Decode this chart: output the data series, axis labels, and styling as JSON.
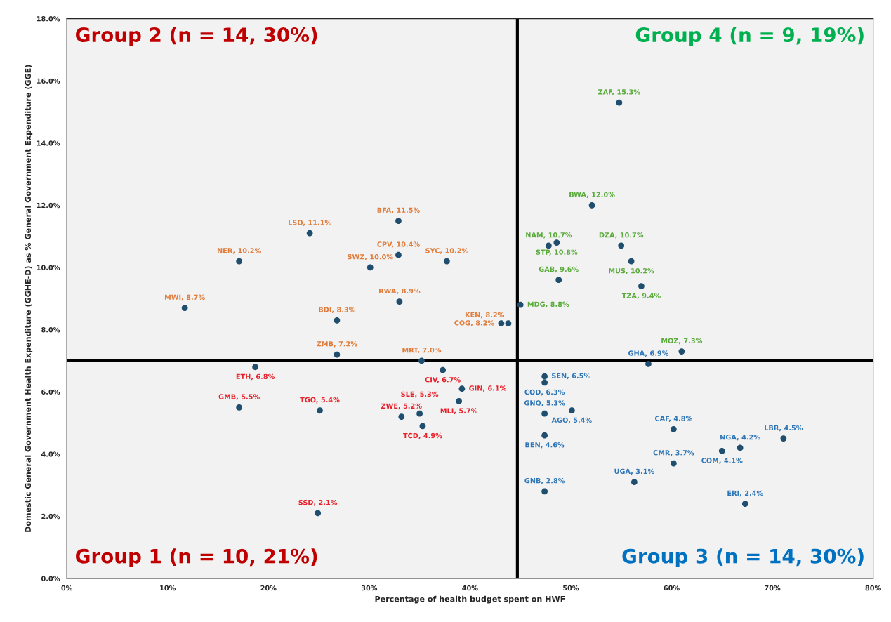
{
  "chart_data": {
    "type": "scatter",
    "xlabel": "Percentage of health budget spent on HWF",
    "ylabel": "Domestic General Government Health Expenditure (GGHE-D) as % General Government Expenditure (GGE)",
    "xlim": [
      0,
      80
    ],
    "ylim": [
      0,
      18
    ],
    "xticks": [
      {
        "value": 0,
        "label": "0%"
      },
      {
        "value": 10,
        "label": "10%"
      },
      {
        "value": 20,
        "label": "20%"
      },
      {
        "value": 30,
        "label": "30%"
      },
      {
        "value": 40,
        "label": "40%"
      },
      {
        "value": 50,
        "label": "50%"
      },
      {
        "value": 60,
        "label": "60%"
      },
      {
        "value": 70,
        "label": "70%"
      },
      {
        "value": 80,
        "label": "80%"
      }
    ],
    "yticks": [
      {
        "value": 0,
        "label": "0.0%"
      },
      {
        "value": 2,
        "label": "2.0%"
      },
      {
        "value": 4,
        "label": "4.0%"
      },
      {
        "value": 6,
        "label": "6.0%"
      },
      {
        "value": 8,
        "label": "8.0%"
      },
      {
        "value": 10,
        "label": "10.0%"
      },
      {
        "value": 12,
        "label": "12.0%"
      },
      {
        "value": 14,
        "label": "14.0%"
      },
      {
        "value": 16,
        "label": "16.0%"
      },
      {
        "value": 18,
        "label": "18.0%"
      }
    ],
    "marker": "circle",
    "grid": false,
    "series": [
      {
        "color": "#1f4e6e",
        "x": [
          11.7,
          17.1,
          24.1,
          32.9,
          32.9,
          30.1,
          37.7,
          33.0,
          26.8,
          43.8,
          43.1,
          26.8,
          35.2
        ],
        "values": [
          8.7,
          10.2,
          11.1,
          11.5,
          10.4,
          10.0,
          10.2,
          8.9,
          8.3,
          8.2,
          8.2,
          7.2,
          7.0
        ],
        "value_labels": [
          "MWI, 8.7%",
          "NER, 10.2%",
          "LSO, 11.1%",
          "BFA, 11.5%",
          "CPV, 10.4%",
          "SWZ, 10.0%",
          "SYC, 10.2%",
          "RWA, 8.9%",
          "BDI, 8.3%",
          "KEN, 8.2%",
          "COG, 8.2%",
          "ZMB, 7.2%",
          "MRT, 7.0%"
        ]
      },
      {
        "color": "#1f4e6e",
        "x": [
          18.7,
          17.1,
          25.1,
          24.9,
          37.3,
          39.2,
          38.9,
          33.2,
          35.0,
          35.3
        ],
        "values": [
          6.8,
          5.5,
          5.4,
          2.1,
          6.7,
          6.1,
          5.7,
          5.2,
          5.3,
          4.9
        ],
        "value_labels": [
          "ETH, 6.8%",
          "GMB, 5.5%",
          "TGO, 5.4%",
          "SSD, 2.1%",
          "CIV, 6.7%",
          "GIN, 6.1%",
          "MLI, 5.7%",
          "ZWE, 5.2%",
          "SLE, 5.3%",
          "TCD, 4.9%"
        ]
      },
      {
        "color": "#1f4e6e",
        "x": [
          54.8,
          52.1,
          47.8,
          48.6,
          55.0,
          56.0,
          48.8,
          57.0,
          45.0,
          61.0
        ],
        "values": [
          15.3,
          12.0,
          10.7,
          10.8,
          10.7,
          10.2,
          9.6,
          9.4,
          8.8,
          7.3
        ],
        "value_labels": [
          "ZAF, 15.3%",
          "BWA, 12.0%",
          "NAM, 10.7%",
          "STP, 10.8%",
          "DZA, 10.7%",
          "MUS, 10.2%",
          "GAB, 9.6%",
          "TZA, 9.4%",
          "MDG, 8.8%",
          "MOZ, 7.3%"
        ]
      },
      {
        "color": "#1f4e6e",
        "x": [
          47.4,
          47.4,
          57.7,
          50.1,
          47.4,
          47.4,
          47.4,
          60.2,
          60.2,
          56.3,
          66.8,
          65.0,
          71.1,
          67.3
        ],
        "values": [
          6.5,
          6.3,
          6.9,
          5.4,
          5.3,
          4.6,
          2.8,
          4.8,
          3.7,
          3.1,
          4.2,
          4.1,
          4.5,
          2.4
        ],
        "value_labels": [
          "SEN, 6.5%",
          "COD, 6.3%",
          "GHA, 6.9%",
          "AGO, 5.4%",
          "GNQ, 5.3%",
          "BEN, 4.6%",
          "GNB, 2.8%",
          "CAF, 4.8%",
          "CMR, 3.7%",
          "UGA, 3.1%",
          "NGA, 4.2%",
          "COM, 4.1%",
          "LBR, 4.5%",
          "ERI, 2.4%"
        ]
      }
    ],
    "ref_lines": [
      {
        "axis": "x",
        "value": 44.7,
        "color": "#000000"
      },
      {
        "axis": "y",
        "value": 7.0,
        "color": "#000000"
      }
    ],
    "annotations": [
      "Group 2 (n = 14, 30%)",
      "Group 4 (n = 9, 19%)",
      "Group 1 (n = 10, 21%)",
      "Group 3 (n = 14, 30%)"
    ]
  }
}
